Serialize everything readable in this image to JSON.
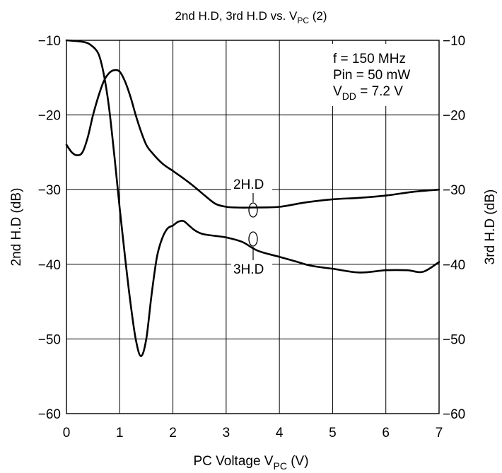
{
  "chart_data": {
    "type": "line",
    "title": {
      "main": "2nd H.D, 3rd H.D vs. V",
      "sub": "PC",
      "tail": " (2)"
    },
    "xlabel": {
      "main": "PC Voltage  V",
      "sub": "PC",
      "tail": "  (V)"
    },
    "ylabel_left": "2nd H.D  (dB)",
    "ylabel_right": "3rd H.D  (dB)",
    "xlim": [
      0,
      7
    ],
    "ylim": [
      -60,
      -10
    ],
    "x_ticks": [
      "0",
      "1",
      "2",
      "3",
      "4",
      "5",
      "6",
      "7"
    ],
    "y_ticks": [
      "−10",
      "−20",
      "−30",
      "−40",
      "−50",
      "−60"
    ],
    "grid": true,
    "conditions": {
      "line1": "f = 150 MHz",
      "line2": "Pin = 50 mW",
      "line3": {
        "main": "V",
        "sub": "DD",
        "tail": " = 7.2 V"
      }
    },
    "series": [
      {
        "name": "2H.D",
        "x": [
          0,
          0.3,
          0.45,
          0.6,
          0.7,
          0.8,
          0.9,
          1.0,
          1.1,
          1.2,
          1.3,
          1.4,
          1.5,
          1.6,
          1.7,
          1.8,
          1.9,
          2.0,
          2.1,
          2.2,
          2.3,
          2.4,
          2.5,
          2.6,
          2.8,
          3.0,
          3.3,
          3.6,
          4.0,
          4.3,
          4.6,
          5.0,
          5.5,
          6.0,
          6.4,
          6.7,
          7.0
        ],
        "y": [
          -10.0,
          -10.2,
          -10.6,
          -11.8,
          -14.5,
          -19.0,
          -25.5,
          -32.5,
          -39.0,
          -45.0,
          -50.0,
          -52.3,
          -50.0,
          -44.0,
          -39.0,
          -36.5,
          -35.2,
          -34.8,
          -34.3,
          -34.2,
          -34.8,
          -35.4,
          -35.8,
          -36.0,
          -36.2,
          -36.4,
          -37.0,
          -38.2,
          -39.0,
          -39.6,
          -40.2,
          -40.6,
          -41.1,
          -40.8,
          -40.8,
          -41.0,
          -39.7
        ]
      },
      {
        "name": "3H.D",
        "x": [
          0,
          0.1,
          0.2,
          0.3,
          0.4,
          0.5,
          0.6,
          0.7,
          0.8,
          0.9,
          1.0,
          1.1,
          1.2,
          1.3,
          1.4,
          1.5,
          1.6,
          1.8,
          2.0,
          2.2,
          2.4,
          2.6,
          2.8,
          3.0,
          3.2,
          3.5,
          4.0,
          4.5,
          5.0,
          5.5,
          6.0,
          6.5,
          7.0
        ],
        "y": [
          -24.0,
          -25.0,
          -25.4,
          -25.0,
          -23.0,
          -20.0,
          -17.5,
          -15.5,
          -14.4,
          -14.0,
          -14.2,
          -15.5,
          -17.5,
          -20.0,
          -22.2,
          -24.0,
          -25.0,
          -26.5,
          -27.5,
          -28.5,
          -29.6,
          -30.8,
          -31.9,
          -32.3,
          -32.4,
          -32.4,
          -32.3,
          -31.7,
          -31.3,
          -31.1,
          -30.8,
          -30.3,
          -30.0
        ]
      }
    ]
  }
}
